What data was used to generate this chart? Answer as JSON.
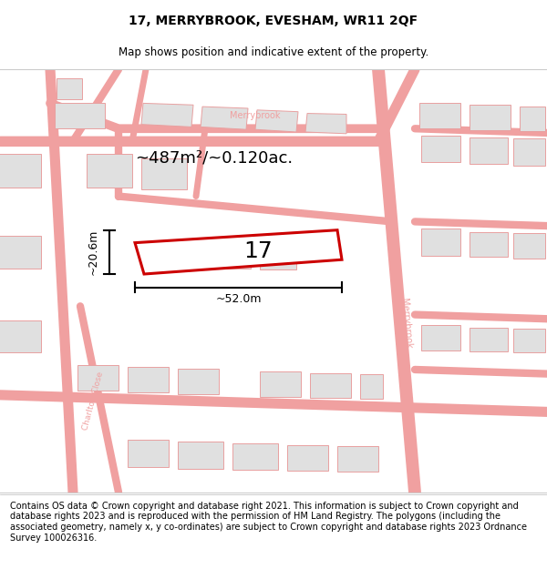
{
  "title": "17, MERRYBROOK, EVESHAM, WR11 2QF",
  "subtitle": "Map shows position and indicative extent of the property.",
  "footer": "Contains OS data © Crown copyright and database right 2021. This information is subject to Crown copyright and database rights 2023 and is reproduced with the permission of HM Land Registry. The polygons (including the associated geometry, namely x, y co-ordinates) are subject to Crown copyright and database rights 2023 Ordnance Survey 100026316.",
  "area_label": "~487m²/~0.120ac.",
  "width_label": "~52.0m",
  "height_label": "~20.6m",
  "plot_number": "17",
  "plot_outline_color": "#cc0000",
  "road_color": "#f0a0a0",
  "road_fill": "#f8d8d8",
  "building_color": "#e0e0e0",
  "building_outline": "#e8a0a0",
  "title_fontsize": 10,
  "subtitle_fontsize": 8.5,
  "footer_fontsize": 7.0,
  "label_fontsize": 13,
  "dim_fontsize": 9,
  "plot_num_fontsize": 18
}
